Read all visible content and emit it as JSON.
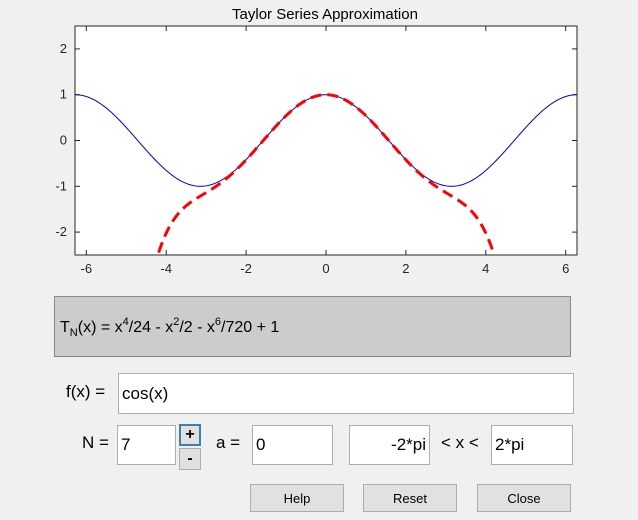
{
  "plot": {
    "title": "Taylor Series Approximation",
    "x_ticks": [
      "-6",
      "-4",
      "-2",
      "0",
      "2",
      "4",
      "6"
    ],
    "y_ticks": [
      "2",
      "1",
      "0",
      "-1",
      "-2"
    ]
  },
  "chart_data": {
    "type": "line",
    "title": "Taylor Series Approximation",
    "xlabel": "",
    "ylabel": "",
    "xlim": [
      -6.2832,
      6.2832
    ],
    "ylim": [
      -2.5,
      2.5
    ],
    "grid": false,
    "series": [
      {
        "style": "solid",
        "color": "#0000cc",
        "function": "cos(x)"
      },
      {
        "style": "dashed",
        "color": "#ff0000",
        "function": "x^4/24 - x^2/2 - x^6/720 + 1"
      }
    ]
  },
  "formula": {
    "T": "T",
    "sub": "N",
    "p1": "(x) = x",
    "e1": "4",
    "p2": "/24 - x",
    "e2": "2",
    "p3": "/2 - x",
    "e3": "6",
    "p4": "/720 + 1"
  },
  "form": {
    "fx_label": "f(x) =",
    "fx_value": "cos(x)",
    "n_label": "N =",
    "n_value": "7",
    "plus_label": "+",
    "minus_label": "-",
    "a_label": "a =",
    "a_value": "0",
    "xmin_value": "-2*pi",
    "range_label": "< x <",
    "xmax_value": "2*pi"
  },
  "buttons": {
    "help": "Help",
    "reset": "Reset",
    "close": "Close"
  },
  "colors": {
    "function_line": "#0000cc",
    "approx_line": "#ff0000",
    "panel_bg": "#cccccc"
  }
}
